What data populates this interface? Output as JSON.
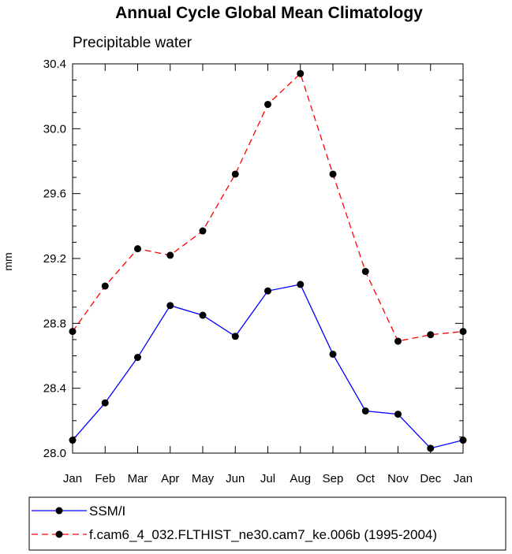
{
  "chart_data": {
    "type": "line",
    "title": "Annual Cycle Global Mean Climatology",
    "subtitle": "Precipitable water",
    "xlabel": "",
    "ylabel": "mm",
    "categories": [
      "Jan",
      "Feb",
      "Mar",
      "Apr",
      "May",
      "Jun",
      "Jul",
      "Aug",
      "Sep",
      "Oct",
      "Nov",
      "Dec",
      "Jan"
    ],
    "ylim": [
      28.0,
      30.4
    ],
    "yticks": [
      "28.0",
      "28.4",
      "28.8",
      "29.2",
      "29.6",
      "30.0",
      "30.4"
    ],
    "series": [
      {
        "name": "SSM/I",
        "color": "#0000ff",
        "dash": "solid",
        "values": [
          28.08,
          28.31,
          28.59,
          28.91,
          28.85,
          28.72,
          29.0,
          29.04,
          28.61,
          28.26,
          28.24,
          28.03,
          28.08
        ]
      },
      {
        "name": "f.cam6_4_032.FLTHIST_ne30.cam7_ke.006b (1995-2004)",
        "color": "#ff0000",
        "dash": "dashed",
        "values": [
          28.75,
          29.03,
          29.26,
          29.22,
          29.37,
          29.72,
          30.15,
          30.34,
          29.72,
          29.12,
          28.69,
          28.73,
          28.75
        ]
      }
    ],
    "legend_position": "bottom"
  }
}
